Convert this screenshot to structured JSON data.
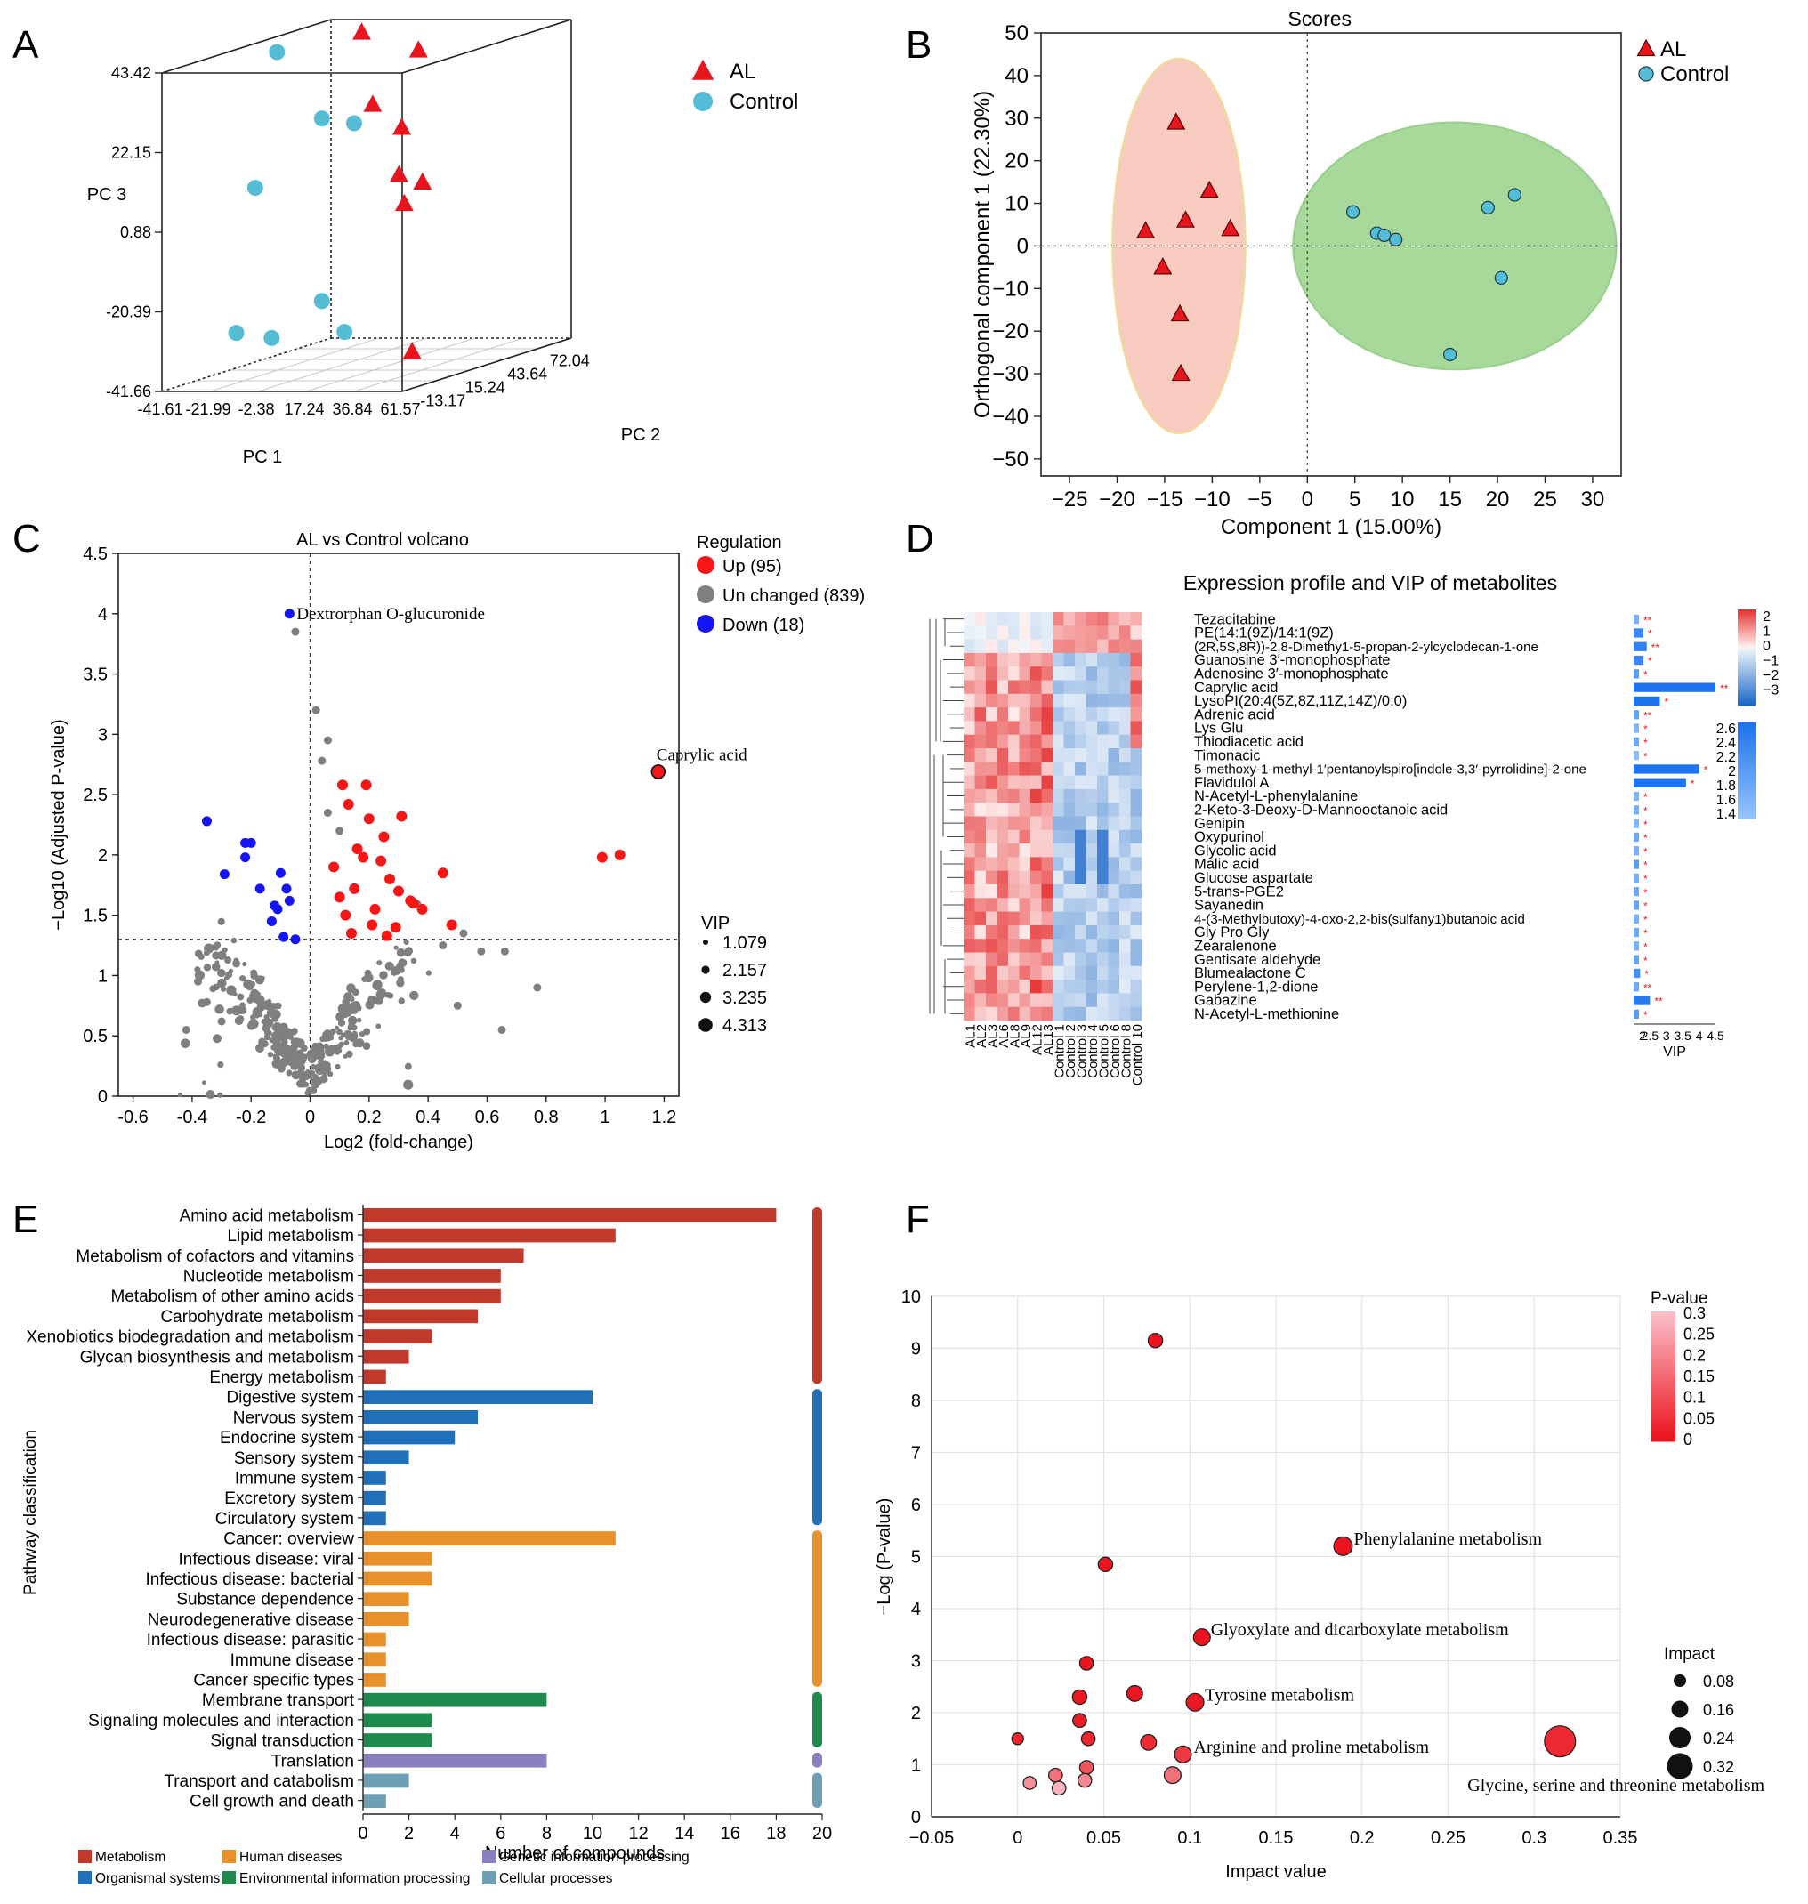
{
  "panel_letters": [
    "A",
    "B",
    "C",
    "D",
    "E",
    "F"
  ],
  "chart_data": [
    {
      "panel": "A",
      "type": "scatter",
      "projection": "3d",
      "axes": {
        "pc1": {
          "label": "PC 1",
          "ticks": [
            "-41.61",
            "-21.99",
            "-2.38",
            "17.24",
            "36.84",
            "61.57"
          ]
        },
        "pc2": {
          "label": "PC 2",
          "ticks": [
            "-13.17",
            "15.24",
            "43.64",
            "72.04"
          ]
        },
        "pc3": {
          "label": "PC 3",
          "ticks": [
            "-41.66",
            "-20.39",
            "0.88",
            "22.15",
            "43.42"
          ]
        }
      },
      "legend": [
        {
          "name": "AL",
          "marker": "triangle",
          "color": "#e8141e"
        },
        {
          "name": "Control",
          "marker": "circle",
          "color": "#55bcd6"
        }
      ],
      "legend_position": "right",
      "series": [
        {
          "name": "AL",
          "points": [
            [
              -8,
              40,
              44
            ],
            [
              -2,
              38,
              25
            ],
            [
              6,
              45,
              18
            ],
            [
              10,
              50,
              38
            ],
            [
              8,
              40,
              6
            ],
            [
              9,
              42,
              -2
            ],
            [
              13,
              48,
              3
            ],
            [
              20,
              30,
              -40
            ]
          ]
        },
        {
          "name": "Control",
          "points": [
            [
              -38,
              30,
              40
            ],
            [
              -20,
              32,
              22
            ],
            [
              -10,
              38,
              20
            ],
            [
              -41,
              20,
              5
            ],
            [
              -30,
              -10,
              -30
            ],
            [
              -18,
              -5,
              -32
            ],
            [
              -6,
              10,
              -24
            ],
            [
              5,
              8,
              -32
            ]
          ]
        }
      ]
    },
    {
      "panel": "B",
      "type": "scatter",
      "title": "Scores",
      "xlabel": "Component 1 (15.00%)",
      "ylabel": "Orthogonal component 1 (22.30%)",
      "xlim": [
        -28,
        33
      ],
      "ylim": [
        -54,
        50
      ],
      "xticks": [
        -25,
        -20,
        -15,
        -10,
        -5,
        0,
        5,
        10,
        15,
        20,
        25,
        30
      ],
      "yticks": [
        50,
        40,
        30,
        20,
        10,
        0,
        -10,
        -20,
        -30,
        -40,
        -50
      ],
      "legend_position": "top-right",
      "series": [
        {
          "name": "AL",
          "marker": "triangle",
          "color": "#e8141e",
          "points": [
            [
              -13.8,
              29
            ],
            [
              -10.3,
              13
            ],
            [
              -12.8,
              6
            ],
            [
              -8.1,
              4
            ],
            [
              -17,
              3.5
            ],
            [
              -15.2,
              -5
            ],
            [
              -13.4,
              -16
            ],
            [
              -13.3,
              -30
            ]
          ]
        },
        {
          "name": "Control",
          "marker": "circle",
          "color": "#55bcd6",
          "points": [
            [
              4.8,
              8
            ],
            [
              7.3,
              3
            ],
            [
              8.1,
              2.5
            ],
            [
              9.3,
              1.5
            ],
            [
              19,
              9
            ],
            [
              21.8,
              12
            ],
            [
              20.4,
              -7.5
            ],
            [
              15,
              -25.5
            ]
          ]
        }
      ],
      "ellipses": [
        {
          "color": "#f7cbc0",
          "stroke": "#f0dc96",
          "cx": -13.5,
          "cy": 0,
          "rx": 7,
          "ry": 44
        },
        {
          "color": "#a6d99a",
          "stroke": "#98cf8c",
          "cx": 15.5,
          "cy": 0,
          "rx": 17,
          "ry": 29
        }
      ]
    },
    {
      "panel": "C",
      "type": "scatter",
      "title": "AL vs Control volcano",
      "xlabel": "Log2 (fold-change)",
      "ylabel": "−Log10 (Adjusted P-value)",
      "xlim": [
        -0.65,
        1.25
      ],
      "ylim": [
        0,
        4.5
      ],
      "xticks": [
        "-0.6",
        "-0.4",
        "-0.2",
        "0",
        "0.2",
        "0.4",
        "0.6",
        "0.8",
        "1",
        "1.2"
      ],
      "yticks": [
        "0",
        "0.5",
        "1",
        "1.5",
        "2",
        "2.5",
        "3",
        "3.5",
        "4",
        "4.5"
      ],
      "threshold_y": 1.3,
      "legend_title": "Regulation",
      "legend": [
        {
          "name": "Up (95)",
          "color": "#f51616"
        },
        {
          "name": "Un changed (839)",
          "color": "#7f7f7f"
        },
        {
          "name": "Down (18)",
          "color": "#1414f5"
        }
      ],
      "size_legend_title": "VIP",
      "size_legend": [
        "1.079",
        "2.157",
        "3.235",
        "4.313"
      ],
      "annotations": [
        {
          "text": "Dextrorphan O-glucuronide",
          "x": -0.07,
          "y": 4.0
        },
        {
          "text": "Caprylic acid",
          "x": 1.18,
          "y": 2.69
        }
      ],
      "up_points": [
        [
          1.18,
          2.69
        ],
        [
          1.05,
          2.0
        ],
        [
          0.99,
          1.98
        ],
        [
          0.45,
          1.85
        ],
        [
          0.34,
          1.62
        ],
        [
          0.38,
          1.55
        ],
        [
          0.48,
          1.42
        ],
        [
          0.11,
          2.58
        ],
        [
          0.19,
          2.58
        ],
        [
          0.13,
          2.42
        ],
        [
          0.2,
          2.3
        ],
        [
          0.31,
          2.32
        ],
        [
          0.25,
          2.15
        ],
        [
          0.18,
          1.98
        ],
        [
          0.27,
          1.8
        ],
        [
          0.15,
          1.72
        ],
        [
          0.22,
          1.55
        ],
        [
          0.29,
          1.4
        ],
        [
          0.12,
          1.5
        ],
        [
          0.35,
          1.6
        ],
        [
          0.08,
          1.9
        ],
        [
          0.16,
          2.05
        ],
        [
          0.24,
          1.95
        ],
        [
          0.3,
          1.7
        ],
        [
          0.21,
          1.42
        ],
        [
          0.14,
          1.35
        ],
        [
          0.26,
          1.33
        ],
        [
          0.1,
          1.65
        ]
      ],
      "down_points": [
        [
          -0.07,
          4.0
        ],
        [
          -0.35,
          2.28
        ],
        [
          -0.22,
          2.1
        ],
        [
          -0.2,
          2.1
        ],
        [
          -0.22,
          1.98
        ],
        [
          -0.29,
          1.84
        ],
        [
          -0.1,
          1.85
        ],
        [
          -0.08,
          1.72
        ],
        [
          -0.17,
          1.72
        ],
        [
          -0.07,
          1.62
        ],
        [
          -0.11,
          1.55
        ],
        [
          -0.13,
          1.45
        ],
        [
          -0.09,
          1.32
        ],
        [
          -0.05,
          1.3
        ],
        [
          -0.12,
          1.58
        ]
      ],
      "unchanged_sample_count": 320
    },
    {
      "panel": "D",
      "type": "heatmap",
      "title": "Expression profile and VIP of metabolites",
      "columns": [
        "AL1",
        "AL2",
        "AL3",
        "AL6",
        "AL8",
        "AL9",
        "AL12",
        "AL13",
        "Control 1",
        "Control 2",
        "Control 3",
        "Control 4",
        "Control 5",
        "Control 6",
        "Control 8",
        "Control 10"
      ],
      "rows": [
        "Tezacitabine",
        "PE(14:1(9Z)/14:1(9Z)",
        "(2R,5S,8R))-2,8-Dimethy1-5-propan-2-ylcyclodecan-1-one",
        "Guanosine 3′-monophosphate",
        "Adenosine 3′-monophosphate",
        "Caprylic acid",
        "LysoPI(20:4(5Z,8Z,11Z,14Z)/0:0)",
        "Adrenic acid",
        "Lys Glu",
        "Thiodiacetic acid",
        "Timonacic",
        "5-methoxy-1-methyl-1′pentanoylspiro[indole-3,3′-pyrrolidine]-2-one",
        "Flavidulol A",
        "N-Acetyl-L-phenylalanine",
        "2-Keto-3-Deoxy-D-Mannooctanoic acid",
        "Genipin",
        "Oxypurinol",
        "Glycolic acid",
        "Malic acid",
        "Glucose aspartate",
        "5-trans-PGE2",
        "Sayanedin",
        "4-(3-Methylbutoxy)-4-oxo-2,2-bis(sulfany1)butanoic acid",
        "Gly Pro Gly",
        "Zearalenone",
        "Gentisate aldehyde",
        "Blumealactone C",
        "Perylene-1,2-dione",
        "Gabazine",
        "N-Acetyl-L-methionine"
      ],
      "vip": [
        1.7,
        2.3,
        2.4,
        2.3,
        2.0,
        4.5,
        2.8,
        1.9,
        1.6,
        1.8,
        1.5,
        4.0,
        3.6,
        1.6,
        1.7,
        1.6,
        1.8,
        1.7,
        2.0,
        1.7,
        1.8,
        1.9,
        1.7,
        1.8,
        1.7,
        1.9,
        2.2,
        1.8,
        2.5,
        2.0
      ],
      "significance": [
        "**",
        "*",
        "**",
        "*",
        "*",
        "**",
        "*",
        "**",
        "*",
        "*",
        "*",
        "*",
        "*",
        "*",
        "*",
        "*",
        "*",
        "*",
        "*",
        "*",
        "*",
        "*",
        "*",
        "*",
        "*",
        "*",
        "*",
        "**",
        "**",
        "*"
      ],
      "vip_xlabel": "VIP",
      "vip_xticks": [
        "2",
        "2.5",
        "3",
        "3.5",
        "4",
        "4.5"
      ],
      "color_scale_ticks": [
        "2",
        "1",
        "0",
        "−1",
        "−2",
        "−3"
      ],
      "vip_scale_ticks": [
        "2.6",
        "2.4",
        "2.2",
        "2",
        "1.8",
        "1.6",
        "1.4"
      ]
    },
    {
      "panel": "E",
      "type": "bar",
      "orientation": "horizontal",
      "xlabel": "Number of compounds",
      "ylabel": "Pathway classification",
      "xlim": [
        0,
        20
      ],
      "xticks": [
        0,
        2,
        4,
        6,
        8,
        10,
        12,
        14,
        16,
        18,
        20
      ],
      "categories": [
        "Amino acid metabolism",
        "Lipid metabolism",
        "Metabolism of cofactors and vitamins",
        "Nucleotide metabolism",
        "Metabolism of other amino acids",
        "Carbohydrate metabolism",
        "Xenobiotics biodegradation and metabolism",
        "Glycan biosynthesis and metabolism",
        "Energy metabolism",
        "Digestive system",
        "Nervous system",
        "Endocrine system",
        "Sensory system",
        "Immune system",
        "Excretory system",
        "Circulatory system",
        "Cancer: overview",
        "Infectious disease: viral",
        "Infectious disease: bacterial",
        "Substance dependence",
        "Neurodegenerative disease",
        "Infectious disease: parasitic",
        "Immune disease",
        "Cancer specific types",
        "Membrane transport",
        "Signaling molecules and interaction",
        "Signal transduction",
        "Translation",
        "Transport and catabolism",
        "Cell growth and death"
      ],
      "values": [
        18,
        11,
        7,
        6,
        6,
        5,
        3,
        2,
        1,
        10,
        5,
        4,
        2,
        1,
        1,
        1,
        11,
        3,
        3,
        2,
        2,
        1,
        1,
        1,
        8,
        3,
        3,
        8,
        2,
        1
      ],
      "groups": [
        0,
        0,
        0,
        0,
        0,
        0,
        0,
        0,
        0,
        1,
        1,
        1,
        1,
        1,
        1,
        1,
        2,
        2,
        2,
        2,
        2,
        2,
        2,
        2,
        3,
        3,
        3,
        4,
        5,
        5
      ],
      "group_legend": [
        {
          "name": "Metabolism",
          "color": "#c0392b"
        },
        {
          "name": "Organismal systems",
          "color": "#1f70b8"
        },
        {
          "name": "Human diseases",
          "color": "#e8902a"
        },
        {
          "name": "Environmental information processing",
          "color": "#1e8a4c"
        },
        {
          "name": "Genetic information processing",
          "color": "#8a7fc0"
        },
        {
          "name": "Cellular processes",
          "color": "#6f9fb4"
        }
      ]
    },
    {
      "panel": "F",
      "type": "scatter",
      "xlabel": "Impact value",
      "ylabel": "−Log (P-value)",
      "xlim": [
        -0.05,
        0.35
      ],
      "ylim": [
        0,
        10
      ],
      "xticks": [
        "−0.05",
        "0",
        "0.05",
        "0.1",
        "0.15",
        "0.2",
        "0.25",
        "0.3",
        "0.35"
      ],
      "yticks": [
        "0",
        "1",
        "2",
        "3",
        "4",
        "5",
        "6",
        "7",
        "8",
        "9",
        "10"
      ],
      "color_legend_title": "P-value",
      "color_legend_ticks": [
        "0.3",
        "0.25",
        "0.2",
        "0.15",
        "0.1",
        "0.05",
        "0"
      ],
      "size_legend_title": "Impact",
      "size_legend_ticks": [
        "0.08",
        "0.16",
        "0.24",
        "0.32"
      ],
      "points": [
        {
          "x": 0.08,
          "y": 9.15,
          "r": 0.02,
          "p": 0.0001
        },
        {
          "x": 0.189,
          "y": 5.2,
          "r": 0.06,
          "p": 1e-05
        },
        {
          "x": 0.051,
          "y": 4.85,
          "r": 0.02,
          "p": 1e-05
        },
        {
          "x": 0.107,
          "y": 3.45,
          "r": 0.04,
          "p": 0.0004
        },
        {
          "x": 0.04,
          "y": 2.95,
          "r": 0.015,
          "p": 0.001
        },
        {
          "x": 0.068,
          "y": 2.37,
          "r": 0.03,
          "p": 0.004
        },
        {
          "x": 0.036,
          "y": 2.3,
          "r": 0.02,
          "p": 0.005
        },
        {
          "x": 0.103,
          "y": 2.2,
          "r": 0.05,
          "p": 0.006
        },
        {
          "x": 0.036,
          "y": 1.85,
          "r": 0.015,
          "p": 0.014
        },
        {
          "x": 0.041,
          "y": 1.5,
          "r": 0.015,
          "p": 0.03
        },
        {
          "x": 0.0,
          "y": 1.5,
          "r": 0.005,
          "p": 0.03
        },
        {
          "x": 0.076,
          "y": 1.43,
          "r": 0.03,
          "p": 0.037
        },
        {
          "x": 0.315,
          "y": 1.45,
          "r": 0.32,
          "p": 0.035
        },
        {
          "x": 0.096,
          "y": 1.2,
          "r": 0.04,
          "p": 0.063
        },
        {
          "x": 0.04,
          "y": 0.95,
          "r": 0.015,
          "p": 0.11
        },
        {
          "x": 0.022,
          "y": 0.8,
          "r": 0.015,
          "p": 0.16
        },
        {
          "x": 0.09,
          "y": 0.8,
          "r": 0.04,
          "p": 0.16
        },
        {
          "x": 0.039,
          "y": 0.7,
          "r": 0.015,
          "p": 0.2
        },
        {
          "x": 0.007,
          "y": 0.65,
          "r": 0.01,
          "p": 0.22
        },
        {
          "x": 0.024,
          "y": 0.55,
          "r": 0.015,
          "p": 0.28
        }
      ],
      "annotations": [
        {
          "text": "Phenylalanine metabolism",
          "x": 0.189,
          "y": 5.2
        },
        {
          "text": "Glyoxylate and dicarboxylate metabolism",
          "x": 0.107,
          "y": 3.45
        },
        {
          "text": "Tyrosine metabolism",
          "x": 0.103,
          "y": 2.2
        },
        {
          "text": "Arginine and proline metabolism",
          "x": 0.096,
          "y": 1.2
        },
        {
          "text": "Glycine, serine and threonine metabolism",
          "x": 0.315,
          "y": 1.45
        }
      ]
    }
  ]
}
